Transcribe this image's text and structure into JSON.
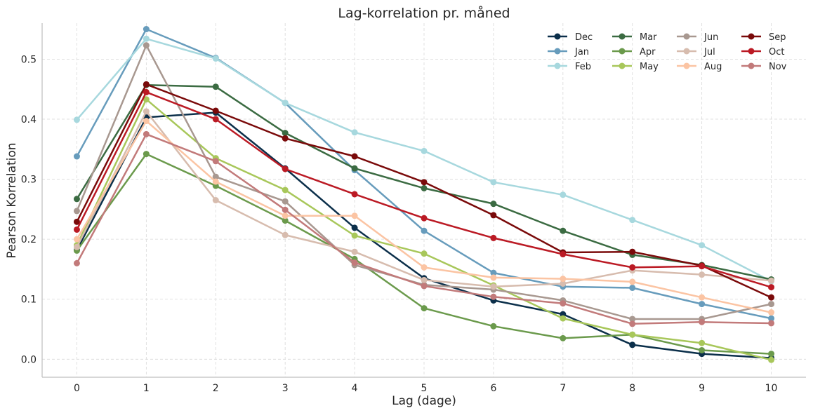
{
  "chart_data": {
    "type": "line",
    "title": "Lag-korrelation pr. måned",
    "xlabel": "Lag (dage)",
    "ylabel": "Pearson Korrelation",
    "x": [
      0,
      1,
      2,
      3,
      4,
      5,
      6,
      7,
      8,
      9,
      10
    ],
    "xlim": [
      -0.5,
      10.5
    ],
    "ylim": [
      -0.03,
      0.56
    ],
    "yticks": [
      0.0,
      0.1,
      0.2,
      0.3,
      0.4,
      0.5
    ],
    "ytick_labels": [
      "0.0",
      "0.1",
      "0.2",
      "0.3",
      "0.4",
      "0.5"
    ],
    "xtick_labels": [
      "0",
      "1",
      "2",
      "3",
      "4",
      "5",
      "6",
      "7",
      "8",
      "9",
      "10"
    ],
    "grid": true,
    "legend_position": "top-right",
    "series": [
      {
        "name": "Dec",
        "color": "#0b2f4a",
        "values": [
          0.182,
          0.403,
          0.411,
          0.318,
          0.219,
          0.135,
          0.098,
          0.075,
          0.024,
          0.009,
          0.002
        ]
      },
      {
        "name": "Jan",
        "color": "#679cbc",
        "values": [
          0.338,
          0.55,
          0.502,
          0.427,
          0.315,
          0.214,
          0.144,
          0.121,
          0.119,
          0.092,
          0.068
        ]
      },
      {
        "name": "Feb",
        "color": "#a7d8de",
        "values": [
          0.399,
          0.534,
          0.501,
          0.427,
          0.378,
          0.347,
          0.295,
          0.274,
          0.232,
          0.19,
          0.13
        ]
      },
      {
        "name": "Mar",
        "color": "#3b6b42",
        "values": [
          0.267,
          0.457,
          0.454,
          0.377,
          0.318,
          0.285,
          0.259,
          0.214,
          0.174,
          0.157,
          0.133
        ]
      },
      {
        "name": "Apr",
        "color": "#6b9a4c",
        "values": [
          0.181,
          0.342,
          0.289,
          0.231,
          0.167,
          0.085,
          0.055,
          0.035,
          0.041,
          0.015,
          0.009
        ]
      },
      {
        "name": "May",
        "color": "#a8c75a",
        "values": [
          0.19,
          0.433,
          0.335,
          0.282,
          0.206,
          0.176,
          0.123,
          0.068,
          0.041,
          0.027,
          -0.001
        ]
      },
      {
        "name": "Jun",
        "color": "#a89890",
        "values": [
          0.247,
          0.523,
          0.304,
          0.263,
          0.157,
          0.124,
          0.116,
          0.098,
          0.067,
          0.067,
          0.092
        ]
      },
      {
        "name": "Jul",
        "color": "#d7bcae",
        "values": [
          0.187,
          0.413,
          0.265,
          0.207,
          0.179,
          0.132,
          0.121,
          0.126,
          0.148,
          0.141,
          0.131
        ]
      },
      {
        "name": "Aug",
        "color": "#fbc4a3",
        "values": [
          0.2,
          0.397,
          0.296,
          0.239,
          0.239,
          0.153,
          0.136,
          0.134,
          0.129,
          0.103,
          0.078
        ]
      },
      {
        "name": "Sep",
        "color": "#7a0a0a",
        "values": [
          0.229,
          0.458,
          0.414,
          0.368,
          0.338,
          0.295,
          0.24,
          0.178,
          0.179,
          0.156,
          0.103
        ]
      },
      {
        "name": "Oct",
        "color": "#bb1a24",
        "values": [
          0.216,
          0.445,
          0.4,
          0.317,
          0.275,
          0.235,
          0.202,
          0.175,
          0.153,
          0.155,
          0.12
        ]
      },
      {
        "name": "Nov",
        "color": "#c27a7a",
        "values": [
          0.16,
          0.375,
          0.33,
          0.249,
          0.161,
          0.122,
          0.104,
          0.093,
          0.059,
          0.062,
          0.06
        ]
      }
    ]
  }
}
